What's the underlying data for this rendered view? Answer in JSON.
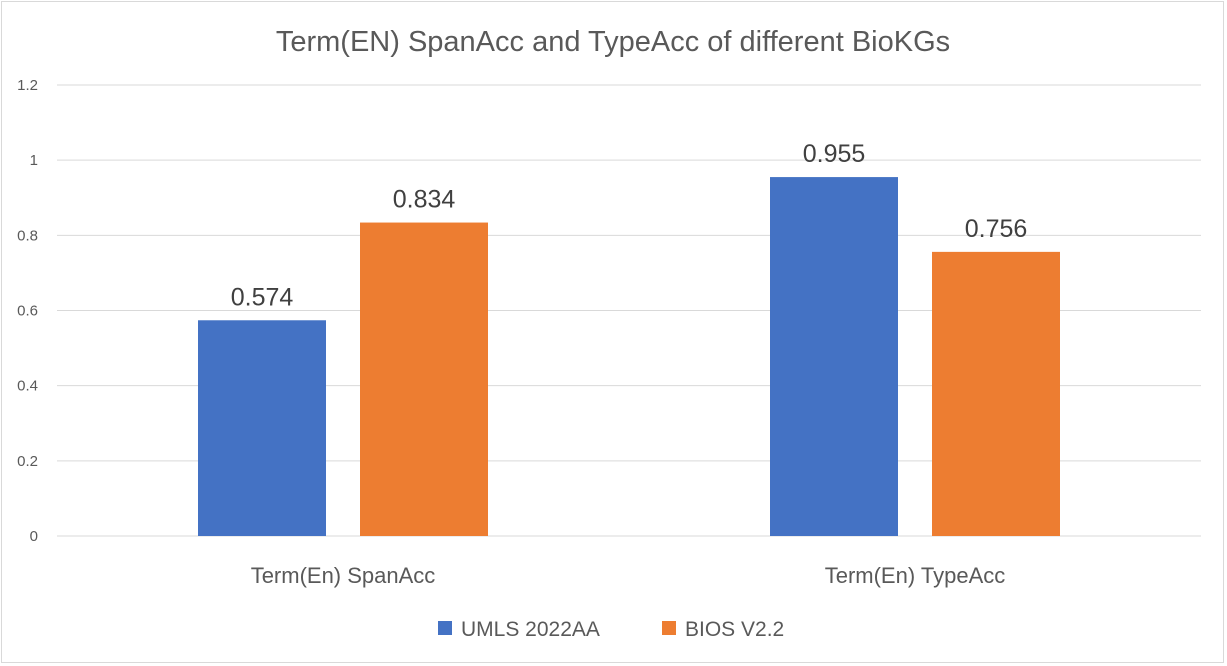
{
  "chart_data": {
    "type": "bar",
    "title": "Term(EN) SpanAcc and TypeAcc of different BioKGs",
    "xlabel": "",
    "ylabel": "",
    "categories": [
      "Term(En) SpanAcc",
      "Term(En) TypeAcc"
    ],
    "series": [
      {
        "name": "UMLS 2022AA",
        "values": [
          0.574,
          0.955
        ],
        "color": "#4472C4"
      },
      {
        "name": "BIOS V2.2",
        "values": [
          0.834,
          0.756
        ],
        "color": "#ED7D31"
      }
    ],
    "ylim": [
      0,
      1.2
    ],
    "yticks": [
      "0",
      "0.2",
      "0.4",
      "0.6",
      "0.8",
      "1",
      "1.2"
    ],
    "grid": true,
    "legend_position": "bottom",
    "data_labels": true
  }
}
